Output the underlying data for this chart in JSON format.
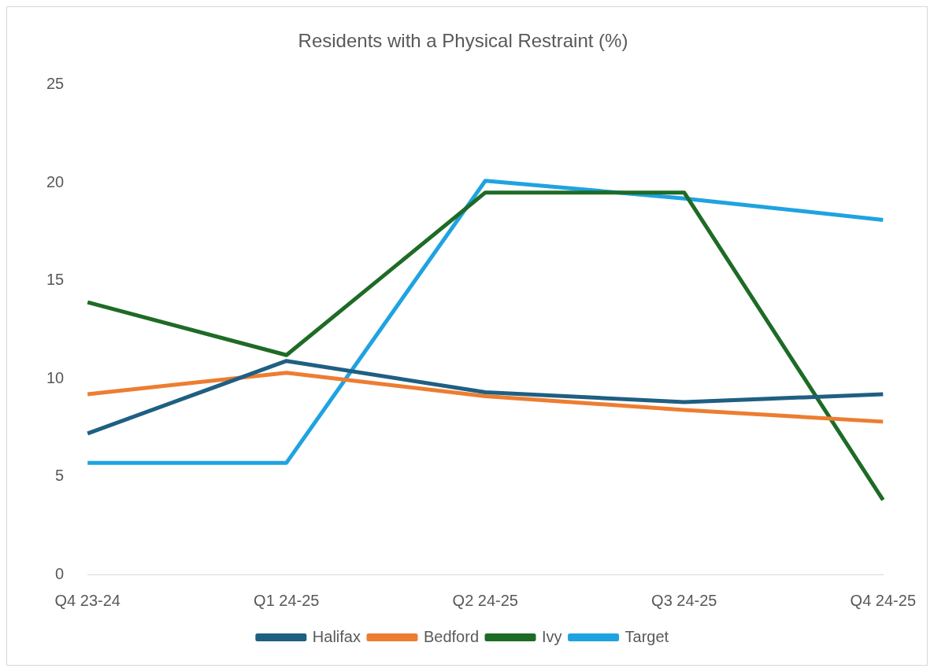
{
  "chart_data": {
    "type": "line",
    "title": "Residents with a Physical Restraint (%)",
    "categories": [
      "Q4 23-24",
      "Q1 24-25",
      "Q2 24-25",
      "Q3 24-25",
      "Q4 24-25"
    ],
    "series": [
      {
        "name": "Halifax",
        "color": "#1f5f82",
        "values": [
          7.2,
          10.9,
          9.3,
          8.8,
          9.2
        ]
      },
      {
        "name": "Bedford",
        "color": "#ed7d31",
        "values": [
          9.2,
          10.3,
          9.1,
          8.4,
          7.8
        ]
      },
      {
        "name": "Ivy",
        "color": "#1e6b26",
        "values": [
          13.9,
          11.2,
          19.5,
          19.5,
          3.8
        ]
      },
      {
        "name": "Target",
        "color": "#1fa3e0",
        "values": [
          5.7,
          5.7,
          20.1,
          19.2,
          18.1
        ]
      }
    ],
    "ylim": [
      0,
      25
    ],
    "yticks": [
      0,
      5,
      10,
      15,
      20,
      25
    ],
    "grid": false,
    "legend": "bottom",
    "marker": "none",
    "line_style": "solid"
  }
}
